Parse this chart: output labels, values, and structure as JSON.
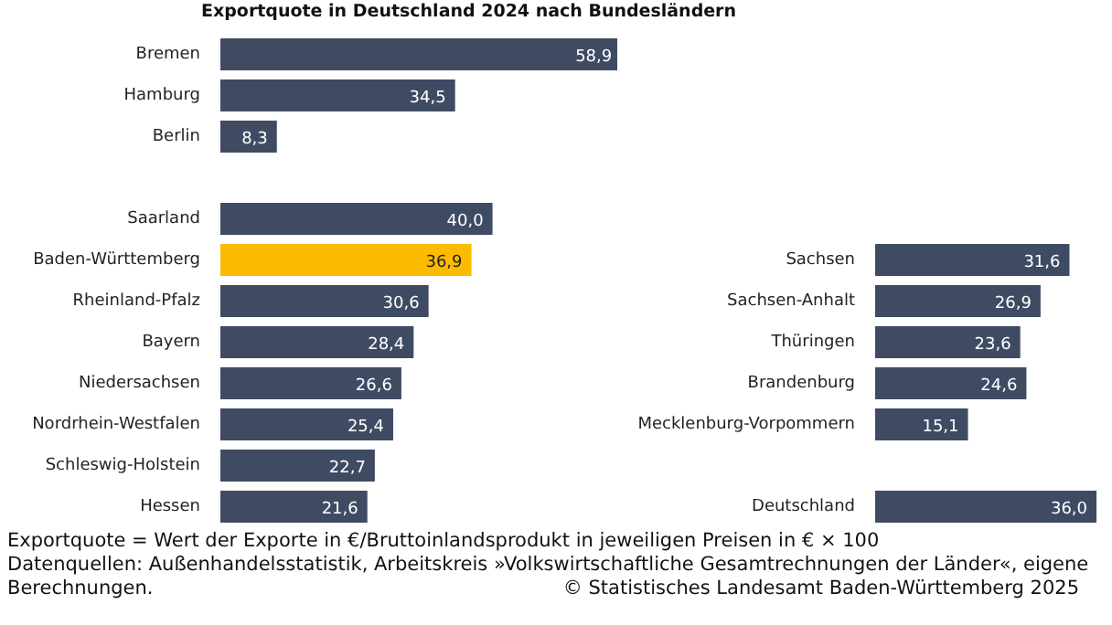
{
  "chart_data": [
    {
      "type": "bar",
      "orientation": "horizontal",
      "title": "Exportquote in Deutschland 2024 nach Bundesländern",
      "value_labels": [
        "58,9",
        "34,5",
        "8,3",
        null,
        "40,0",
        "36,9",
        "30,6",
        "28,4",
        "26,6",
        "25,4",
        "22,7",
        "21,6"
      ],
      "categories": [
        "Bremen",
        "Hamburg",
        "Berlin",
        null,
        "Saarland",
        "Baden-Württemberg",
        "Rheinland-Pfalz",
        "Bayern",
        "Niedersachsen",
        "Nordrhein-Westfalen",
        "Schleswig-Holstein",
        "Hessen"
      ],
      "values": [
        58.9,
        34.5,
        8.3,
        null,
        40.0,
        36.9,
        30.6,
        28.4,
        26.6,
        25.4,
        22.7,
        21.6
      ],
      "colors": [
        "#3f4b63",
        "#3f4b63",
        "#3f4b63",
        "#3f4b63",
        "#3f4b63",
        "#fbbc00",
        "#3f4b63",
        "#3f4b63",
        "#3f4b63",
        "#3f4b63",
        "#3f4b63",
        "#3f4b63"
      ],
      "annotations": [
        "Exportquote = Wert der Exporte in €/Bruttoinlandsprodukt in jeweiligen Preisen in € × 100",
        "Datenquellen: Außenhandelsstatistik, Arbeitskreis »Volkswirtschaftliche Gesamtrechnungen der Länder«, eigene Berechnungen.",
        "© Statistisches Landesamt Baden-Württemberg 2025"
      ]
    },
    {
      "type": "bar",
      "orientation": "horizontal",
      "value_labels": [
        "31,6",
        "26,9",
        "23,6",
        "24,6",
        "15,1",
        null,
        "36,0"
      ],
      "categories": [
        "Sachsen",
        "Sachsen-Anhalt",
        "Thüringen",
        "Brandenburg",
        "Mecklenburg-Vorpommern",
        null,
        "Deutschland"
      ],
      "values": [
        31.6,
        26.9,
        23.6,
        24.6,
        15.1,
        null,
        36.0
      ],
      "color": "#3f4b63"
    }
  ]
}
